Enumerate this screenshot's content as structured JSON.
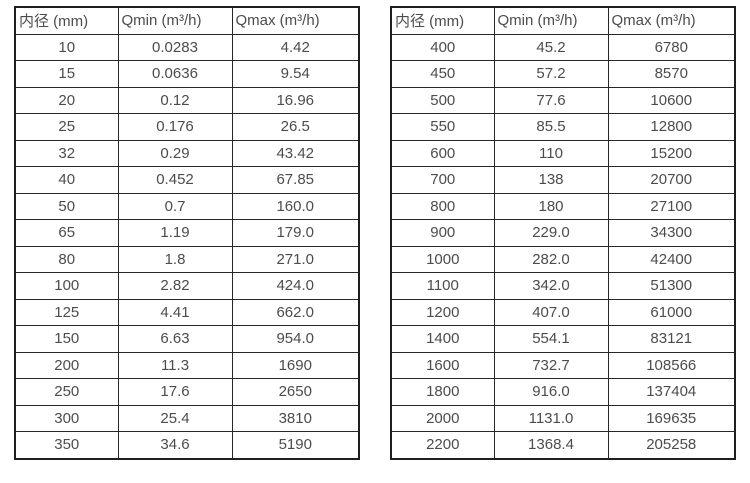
{
  "page": {
    "background_color": "#ffffff",
    "border_color": "#262626",
    "text_color": "#4c4c4c"
  },
  "tables": [
    {
      "id": "left-flow-table",
      "headers": [
        "内径 (mm)",
        "Qmin (m³/h)",
        "Qmax (m³/h)"
      ],
      "rows": [
        [
          "10",
          "0.0283",
          "4.42"
        ],
        [
          "15",
          "0.0636",
          "9.54"
        ],
        [
          "20",
          "0.12",
          "16.96"
        ],
        [
          "25",
          "0.176",
          "26.5"
        ],
        [
          "32",
          "0.29",
          "43.42"
        ],
        [
          "40",
          "0.452",
          "67.85"
        ],
        [
          "50",
          "0.7",
          "160.0"
        ],
        [
          "65",
          "1.19",
          "179.0"
        ],
        [
          "80",
          "1.8",
          "271.0"
        ],
        [
          "100",
          "2.82",
          "424.0"
        ],
        [
          "125",
          "4.41",
          "662.0"
        ],
        [
          "150",
          "6.63",
          "954.0"
        ],
        [
          "200",
          "11.3",
          "1690"
        ],
        [
          "250",
          "17.6",
          "2650"
        ],
        [
          "300",
          "25.4",
          "3810"
        ],
        [
          "350",
          "34.6",
          "5190"
        ]
      ]
    },
    {
      "id": "right-flow-table",
      "headers": [
        "内径 (mm)",
        "Qmin (m³/h)",
        "Qmax (m³/h)"
      ],
      "rows": [
        [
          "400",
          "45.2",
          "6780"
        ],
        [
          "450",
          "57.2",
          "8570"
        ],
        [
          "500",
          "77.6",
          "10600"
        ],
        [
          "550",
          "85.5",
          "12800"
        ],
        [
          "600",
          "110",
          "15200"
        ],
        [
          "700",
          "138",
          "20700"
        ],
        [
          "800",
          "180",
          "27100"
        ],
        [
          "900",
          "229.0",
          "34300"
        ],
        [
          "1000",
          "282.0",
          "42400"
        ],
        [
          "1100",
          "342.0",
          "51300"
        ],
        [
          "1200",
          "407.0",
          "61000"
        ],
        [
          "1400",
          "554.1",
          "83121"
        ],
        [
          "1600",
          "732.7",
          "108566"
        ],
        [
          "1800",
          "916.0",
          "137404"
        ],
        [
          "2000",
          "1131.0",
          "169635"
        ],
        [
          "2200",
          "1368.4",
          "205258"
        ]
      ]
    }
  ]
}
